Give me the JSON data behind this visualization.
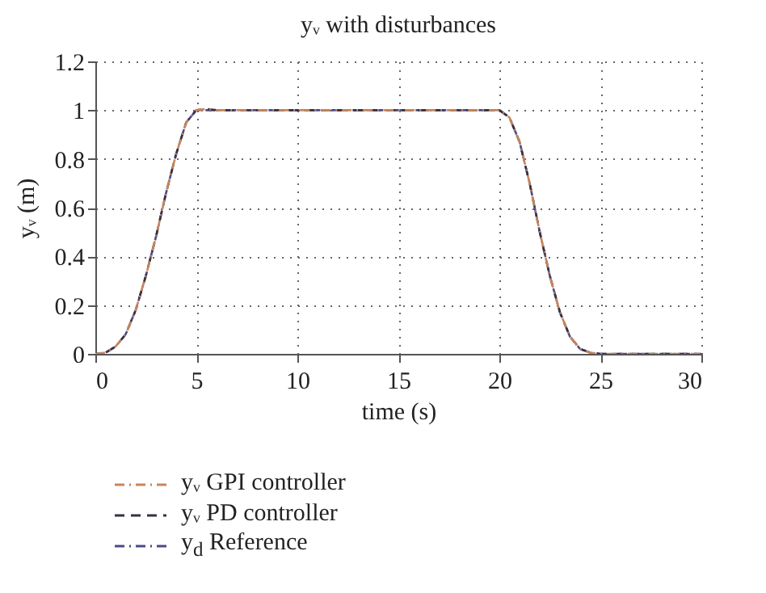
{
  "chart_data": {
    "type": "line",
    "title": "yᵥ with disturbances",
    "xlabel": "time (s)",
    "ylabel": "yᵥ (m)",
    "x": [
      0,
      0.5,
      1,
      1.5,
      2,
      2.5,
      3,
      3.5,
      4,
      4.5,
      5,
      5.5,
      6,
      10,
      15,
      20,
      20.5,
      21,
      21.5,
      22,
      22.5,
      23,
      23.5,
      24,
      24.5,
      25,
      30
    ],
    "series": [
      {
        "name": "yᵥ GPI controller",
        "color": "#c8855a",
        "line_style": "dashdot",
        "values": [
          0,
          0.005,
          0.03,
          0.08,
          0.18,
          0.32,
          0.48,
          0.66,
          0.82,
          0.95,
          1,
          1.005,
          1,
          1,
          1,
          1,
          0.97,
          0.87,
          0.7,
          0.5,
          0.32,
          0.17,
          0.07,
          0.02,
          0.005,
          0,
          0
        ]
      },
      {
        "name": "yᵥ PD controller",
        "color": "#333344",
        "line_style": "dashed",
        "values": [
          0,
          0.005,
          0.03,
          0.08,
          0.18,
          0.32,
          0.48,
          0.66,
          0.82,
          0.95,
          1,
          1.005,
          1,
          1,
          1,
          1,
          0.97,
          0.87,
          0.7,
          0.5,
          0.32,
          0.17,
          0.07,
          0.02,
          0.005,
          0,
          0
        ]
      },
      {
        "name": "y$_{d}$ Reference",
        "color": "#4a4a8a",
        "line_style": "dashdot",
        "values": [
          0,
          0.005,
          0.03,
          0.08,
          0.18,
          0.32,
          0.48,
          0.66,
          0.82,
          0.95,
          1,
          1,
          1,
          1,
          1,
          1,
          0.97,
          0.87,
          0.7,
          0.5,
          0.32,
          0.17,
          0.07,
          0.02,
          0.005,
          0,
          0
        ]
      }
    ],
    "xlim": [
      0,
      30
    ],
    "xticks": [
      0,
      5,
      10,
      15,
      20,
      25,
      30
    ],
    "ylim": [
      0,
      1.2
    ],
    "yticks": [
      0,
      0.2,
      0.4,
      0.6,
      0.8,
      1,
      1.2
    ],
    "grid": true,
    "legend": "bottom"
  }
}
